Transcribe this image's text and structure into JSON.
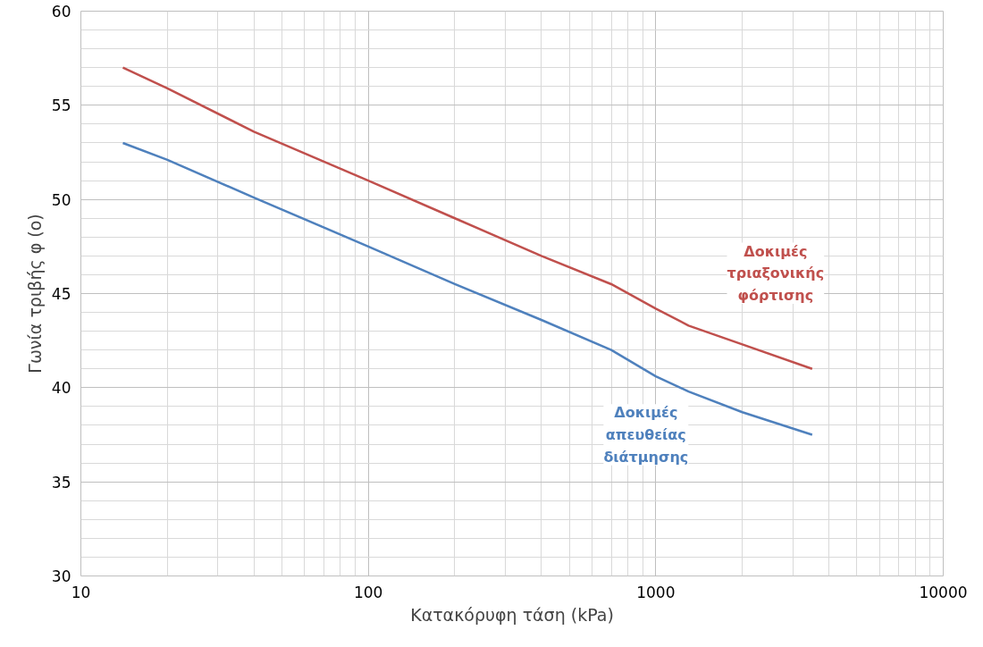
{
  "chart_data": {
    "type": "line",
    "xlabel": "Κατακόρυφη τάση (kPa)",
    "ylabel": "Γωνία τριβής φ (o)",
    "log": "x",
    "xlim": [
      10,
      10000
    ],
    "xticks": [
      10,
      100,
      1000,
      10000
    ],
    "ylim": [
      30,
      60
    ],
    "yticks": [
      30,
      35,
      40,
      45,
      50,
      55,
      60
    ],
    "grid": true,
    "marker": "none",
    "line_style": "solid",
    "series": [
      {
        "name": "Δοκιμές τριαξονικής φόρτισης",
        "color": "#c0504d",
        "x": [
          14,
          20,
          40,
          100,
          200,
          400,
          700,
          1000,
          1300,
          2000,
          3500
        ],
        "values": [
          57,
          55.9,
          53.6,
          51,
          49,
          47,
          45.5,
          44.2,
          43.3,
          42.3,
          41
        ]
      },
      {
        "name": "Δοκιμές απευθείας διάτμησης",
        "color": "#4f81bd",
        "x": [
          14,
          20,
          40,
          100,
          200,
          400,
          700,
          1000,
          1300,
          2000,
          3500
        ],
        "values": [
          53,
          52.1,
          50.1,
          47.5,
          45.5,
          43.6,
          42,
          40.6,
          39.8,
          38.7,
          37.5
        ]
      }
    ]
  }
}
